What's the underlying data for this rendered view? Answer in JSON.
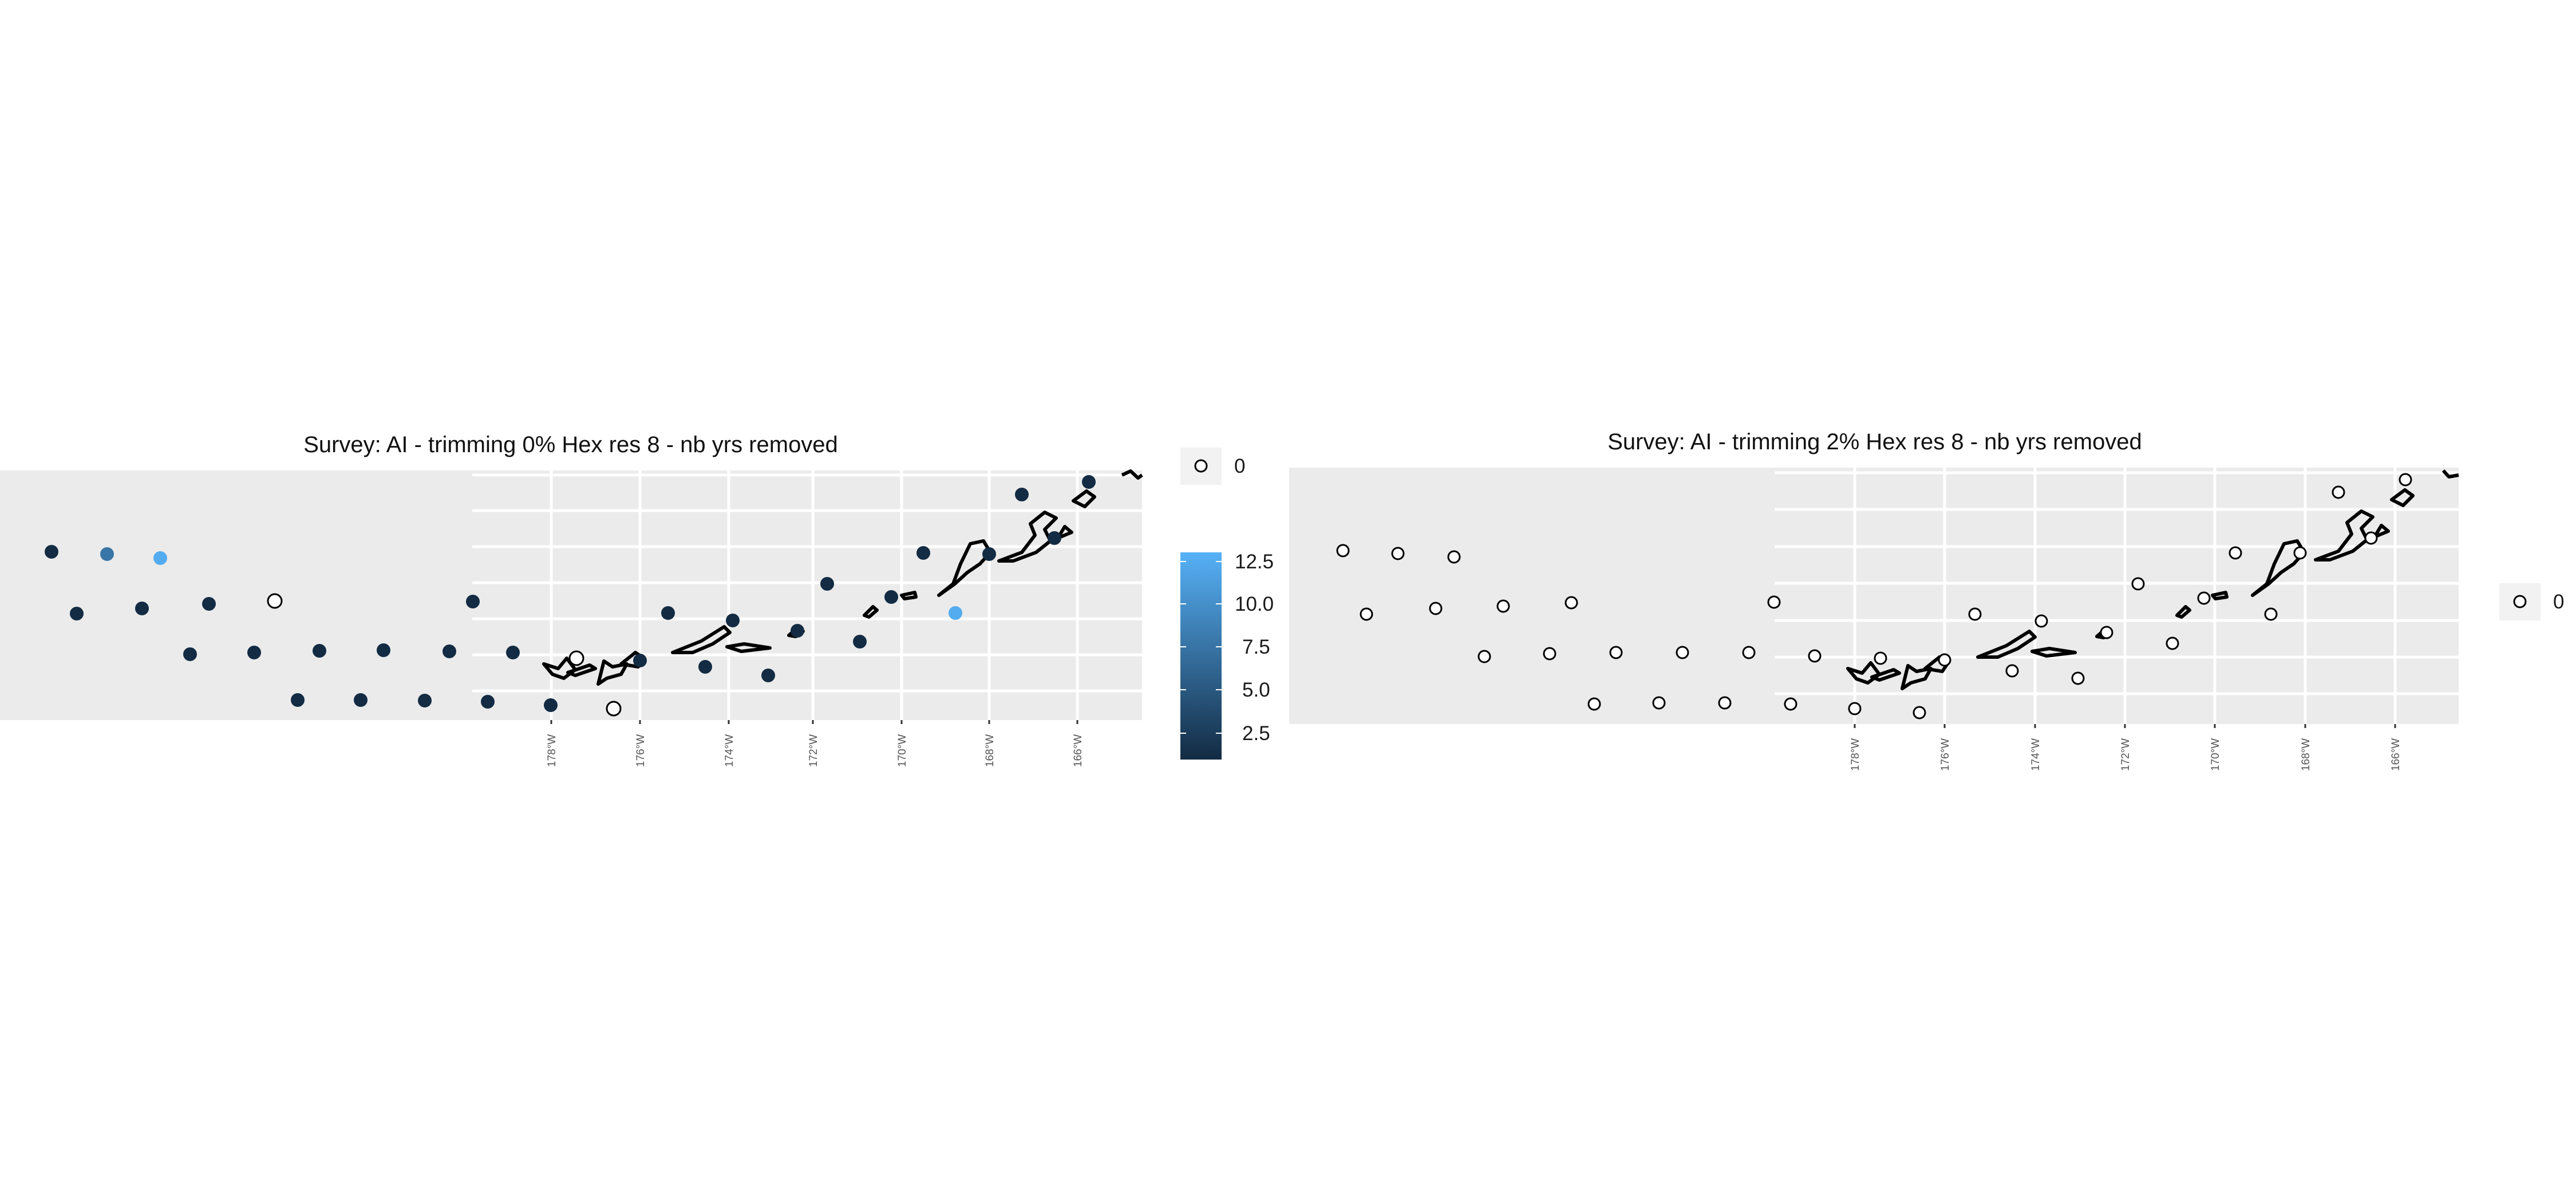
{
  "colors": {
    "panel_background": "#ebebeb",
    "grid": "#ffffff",
    "land_outline": "#000000",
    "scale_low": "#132b43",
    "scale_high": "#56b1f7",
    "empty_point_fill": "#ffffff"
  },
  "panels": [
    {
      "title": "Survey: AI - trimming 0% Hex res 8 - nb yrs removed",
      "x_ticks": [
        "178°W",
        "176°W",
        "174°W",
        "172°W",
        "170°W",
        "168°W",
        "166°W"
      ],
      "legend_zero": {
        "label": "0"
      },
      "colorbar": {
        "labels": [
          "12.5",
          "10.0",
          "7.5",
          "5.0",
          "2.5"
        ],
        "breaks": [
          12.5,
          10.0,
          7.5,
          5.0,
          2.5
        ],
        "range": [
          1,
          13.5
        ]
      }
    },
    {
      "title": "Survey: AI - trimming 2% Hex res 8 - nb yrs removed",
      "x_ticks": [
        "178°W",
        "176°W",
        "174°W",
        "172°W",
        "170°W",
        "168°W",
        "166°W"
      ],
      "legend_zero": {
        "label": "0"
      }
    }
  ]
}
